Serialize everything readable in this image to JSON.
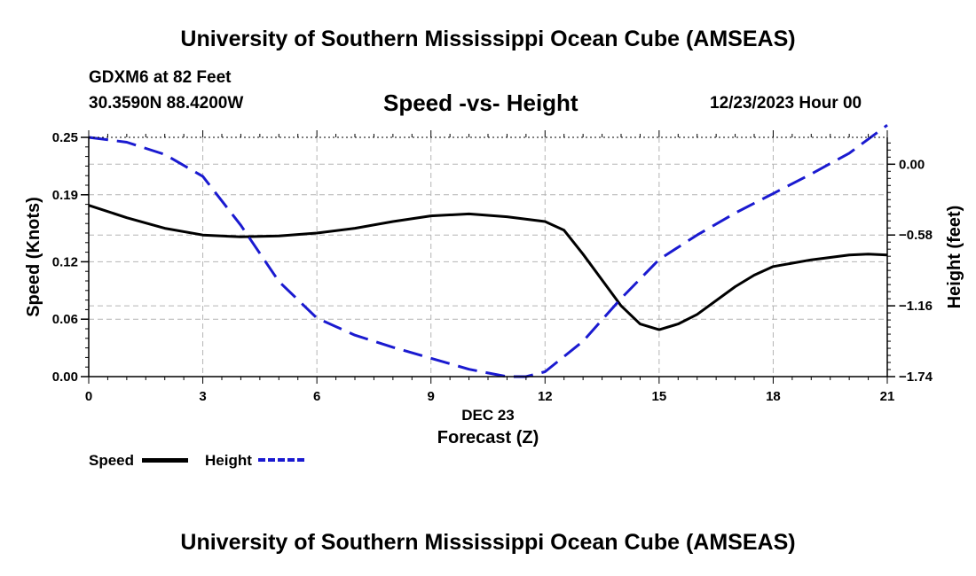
{
  "header": {
    "title": "University of Southern Mississippi Ocean Cube (AMSEAS)",
    "station": "GDXM6 at 82 Feet",
    "coords": "30.3590N  88.4200W",
    "subtitle": "Speed -vs- Height",
    "datetime": "12/23/2023 Hour 00"
  },
  "footer": {
    "title": "University of Southern Mississippi Ocean Cube (AMSEAS)"
  },
  "colors": {
    "speed": "#000000",
    "height": "#1a1ad0",
    "grid": "#b4b4b4"
  },
  "chart_data": {
    "type": "line",
    "title": "Speed -vs- Height",
    "xlabel": "Forecast (Z)",
    "xlabel_date": "DEC 23",
    "ylabel": "Speed (Knots)",
    "y2label": "Height (feet)",
    "xlim": [
      0,
      21
    ],
    "ylim": [
      0,
      0.25
    ],
    "y2lim": [
      -1.74,
      0.22
    ],
    "x_ticks": [
      0,
      3,
      6,
      9,
      12,
      15,
      18,
      21
    ],
    "x_tick_labels": [
      "0",
      "3",
      "6",
      "9",
      "12",
      "15",
      "18",
      "21"
    ],
    "y_ticks": [
      0,
      0.06,
      0.12,
      0.19,
      0.25
    ],
    "y_tick_labels": [
      "0.00",
      "0.06",
      "0.12",
      "0.19",
      "0.25"
    ],
    "y2_ticks": [
      -1.74,
      -1.16,
      -0.58,
      0.0
    ],
    "y2_tick_labels": [
      "−1.74",
      "−1.16",
      "−0.58",
      "0.00"
    ],
    "grid": true,
    "legend": "bottom-left",
    "series": [
      {
        "name": "Speed",
        "axis": "left",
        "style": "solid",
        "x": [
          0,
          1,
          2,
          3,
          4,
          5,
          6,
          7,
          8,
          9,
          10,
          11,
          12,
          12.5,
          13,
          14,
          14.5,
          15,
          15.5,
          16,
          17,
          17.5,
          18,
          19,
          20,
          20.5,
          21
        ],
        "values": [
          0.179,
          0.166,
          0.155,
          0.148,
          0.146,
          0.147,
          0.15,
          0.155,
          0.162,
          0.168,
          0.17,
          0.167,
          0.162,
          0.153,
          0.128,
          0.074,
          0.055,
          0.049,
          0.055,
          0.065,
          0.094,
          0.106,
          0.115,
          0.122,
          0.127,
          0.128,
          0.127
        ]
      },
      {
        "name": "Height",
        "axis": "right",
        "style": "dashed",
        "x": [
          0,
          1,
          2,
          3,
          4,
          5,
          6,
          7,
          8,
          9,
          10,
          11,
          11.5,
          12,
          13,
          14,
          15,
          16,
          17,
          18,
          19,
          20,
          21
        ],
        "values": [
          0.22,
          0.18,
          0.08,
          -0.1,
          -0.5,
          -0.96,
          -1.26,
          -1.4,
          -1.5,
          -1.59,
          -1.68,
          -1.74,
          -1.74,
          -1.7,
          -1.45,
          -1.1,
          -0.78,
          -0.58,
          -0.4,
          -0.24,
          -0.08,
          0.09,
          0.32
        ]
      }
    ]
  },
  "legend": {
    "speed_label": "Speed",
    "height_label": "Height"
  }
}
